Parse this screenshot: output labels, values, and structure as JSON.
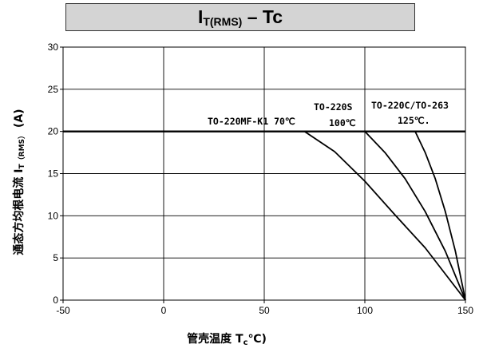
{
  "header": {
    "title_main": "I",
    "title_sub": "T(RMS)",
    "title_rest": " – Tc"
  },
  "colors": {
    "line": "#000000",
    "grid": "#000000",
    "title_bg": "#d4d4d4"
  },
  "chart_data": {
    "type": "line",
    "ylabel": "通态方均根电流 I",
    "ylabel_sub": "T（RMS）",
    "ylabel_unit": " (A)",
    "xlabel": "管壳温度 T",
    "xlabel_sub": "c",
    "xlabel_unit": "℃)",
    "xlim": [
      -50,
      150
    ],
    "ylim": [
      0,
      30
    ],
    "xticks": [
      -50,
      0,
      50,
      100,
      150
    ],
    "yticks": [
      0,
      5,
      10,
      15,
      20,
      25,
      30
    ],
    "grid": true,
    "baseline": {
      "x": [
        -50,
        150
      ],
      "y": [
        20,
        20
      ]
    },
    "series": [
      {
        "label": "TO-220MF-K1 70℃",
        "x": [
          70,
          85,
          100,
          115,
          130,
          150
        ],
        "y": [
          20,
          17.6,
          14.1,
          10.1,
          6.2,
          0
        ]
      },
      {
        "label": "TO-220S",
        "label2": "100℃",
        "x": [
          100,
          110,
          120,
          130,
          140,
          150
        ],
        "y": [
          20,
          17.5,
          14.4,
          10.5,
          5.8,
          0
        ]
      },
      {
        "label": "TO-220C/TO-263",
        "label2": "125℃.",
        "x": [
          125,
          130,
          135,
          140,
          145,
          150
        ],
        "y": [
          20,
          17.5,
          14.4,
          10.5,
          5.8,
          0
        ]
      }
    ]
  }
}
